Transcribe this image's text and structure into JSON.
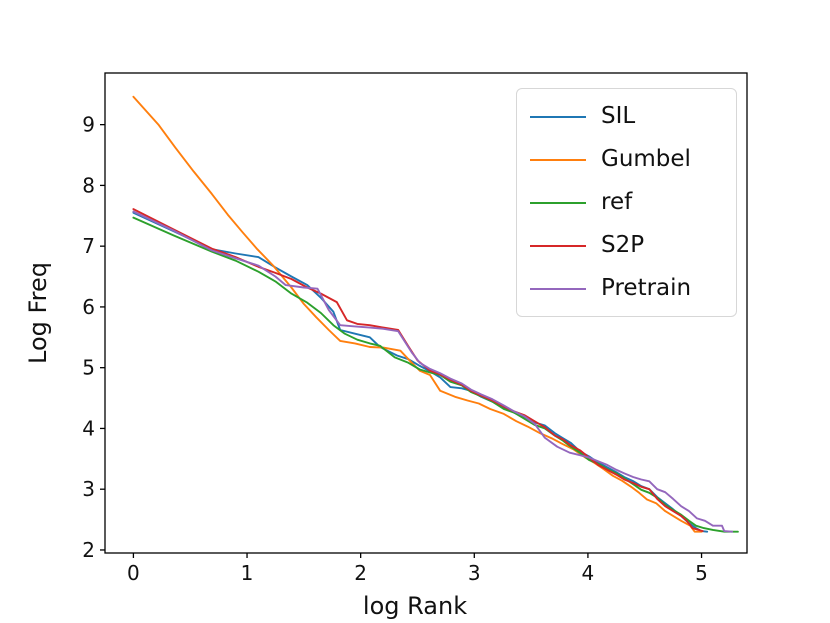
{
  "figure": {
    "background": "#ffffff"
  },
  "chart_data": {
    "type": "line",
    "title": "",
    "xlabel": "log Rank",
    "ylabel": "Log Freq",
    "xlim": [
      -0.25,
      5.4
    ],
    "ylim": [
      1.95,
      9.85
    ],
    "xticks": [
      0,
      1,
      2,
      3,
      4,
      5
    ],
    "yticks": [
      2,
      3,
      4,
      5,
      6,
      7,
      8,
      9
    ],
    "grid": false,
    "axis_color": "#000000",
    "legend": {
      "position": "upper right",
      "border_color": "#d7d7d7"
    },
    "series": [
      {
        "name": "SIL",
        "color": "#1f77b4",
        "points": [
          [
            0,
            7.55
          ],
          [
            0.35,
            7.25
          ],
          [
            0.69,
            6.95
          ],
          [
            0.9,
            6.88
          ],
          [
            1.1,
            6.82
          ],
          [
            1.25,
            6.65
          ],
          [
            1.39,
            6.5
          ],
          [
            1.53,
            6.36
          ],
          [
            1.65,
            6.15
          ],
          [
            1.76,
            5.92
          ],
          [
            1.82,
            5.62
          ],
          [
            1.95,
            5.56
          ],
          [
            2.08,
            5.5
          ],
          [
            2.17,
            5.34
          ],
          [
            2.32,
            5.2
          ],
          [
            2.42,
            5.14
          ],
          [
            2.52,
            5.03
          ],
          [
            2.61,
            4.94
          ],
          [
            2.7,
            4.84
          ],
          [
            2.79,
            4.68
          ],
          [
            2.89,
            4.66
          ],
          [
            2.97,
            4.62
          ],
          [
            3.06,
            4.52
          ],
          [
            3.16,
            4.44
          ],
          [
            3.26,
            4.34
          ],
          [
            3.35,
            4.26
          ],
          [
            3.44,
            4.18
          ],
          [
            3.53,
            4.1
          ],
          [
            3.62,
            4.05
          ],
          [
            3.71,
            3.92
          ],
          [
            3.78,
            3.84
          ],
          [
            3.85,
            3.76
          ],
          [
            3.93,
            3.62
          ],
          [
            4.01,
            3.54
          ],
          [
            4.09,
            3.44
          ],
          [
            4.17,
            3.36
          ],
          [
            4.25,
            3.28
          ],
          [
            4.32,
            3.2
          ],
          [
            4.4,
            3.13
          ],
          [
            4.47,
            3.05
          ],
          [
            4.54,
            3.0
          ],
          [
            4.61,
            2.87
          ],
          [
            4.68,
            2.77
          ],
          [
            4.75,
            2.67
          ],
          [
            4.82,
            2.56
          ],
          [
            4.89,
            2.44
          ],
          [
            4.95,
            2.36
          ],
          [
            5.0,
            2.31
          ],
          [
            5.05,
            2.3
          ]
        ]
      },
      {
        "name": "Gumbel",
        "color": "#ff7f0e",
        "points": [
          [
            0,
            9.46
          ],
          [
            0.22,
            9.0
          ],
          [
            0.37,
            8.62
          ],
          [
            0.53,
            8.23
          ],
          [
            0.69,
            7.86
          ],
          [
            0.83,
            7.52
          ],
          [
            0.96,
            7.23
          ],
          [
            1.09,
            6.95
          ],
          [
            1.23,
            6.68
          ],
          [
            1.39,
            6.32
          ],
          [
            1.5,
            6.05
          ],
          [
            1.61,
            5.83
          ],
          [
            1.72,
            5.62
          ],
          [
            1.82,
            5.44
          ],
          [
            1.95,
            5.4
          ],
          [
            2.08,
            5.34
          ],
          [
            2.2,
            5.33
          ],
          [
            2.35,
            5.28
          ],
          [
            2.45,
            5.08
          ],
          [
            2.52,
            4.95
          ],
          [
            2.61,
            4.88
          ],
          [
            2.7,
            4.62
          ],
          [
            2.83,
            4.52
          ],
          [
            2.94,
            4.46
          ],
          [
            3.04,
            4.41
          ],
          [
            3.14,
            4.32
          ],
          [
            3.26,
            4.24
          ],
          [
            3.37,
            4.12
          ],
          [
            3.47,
            4.03
          ],
          [
            3.58,
            3.92
          ],
          [
            3.69,
            3.83
          ],
          [
            3.78,
            3.74
          ],
          [
            3.87,
            3.66
          ],
          [
            3.97,
            3.53
          ],
          [
            4.06,
            3.43
          ],
          [
            4.14,
            3.33
          ],
          [
            4.22,
            3.22
          ],
          [
            4.3,
            3.14
          ],
          [
            4.38,
            3.04
          ],
          [
            4.45,
            2.94
          ],
          [
            4.52,
            2.83
          ],
          [
            4.6,
            2.77
          ],
          [
            4.68,
            2.64
          ],
          [
            4.75,
            2.56
          ],
          [
            4.82,
            2.48
          ],
          [
            4.9,
            2.4
          ],
          [
            4.94,
            2.3
          ],
          [
            5.0,
            2.3
          ]
        ]
      },
      {
        "name": "ref",
        "color": "#2ca02c",
        "points": [
          [
            0,
            7.47
          ],
          [
            0.35,
            7.18
          ],
          [
            0.69,
            6.91
          ],
          [
            0.9,
            6.76
          ],
          [
            1.1,
            6.58
          ],
          [
            1.25,
            6.42
          ],
          [
            1.39,
            6.22
          ],
          [
            1.53,
            6.07
          ],
          [
            1.65,
            5.9
          ],
          [
            1.76,
            5.7
          ],
          [
            1.86,
            5.56
          ],
          [
            1.97,
            5.46
          ],
          [
            2.08,
            5.4
          ],
          [
            2.17,
            5.36
          ],
          [
            2.3,
            5.17
          ],
          [
            2.42,
            5.08
          ],
          [
            2.52,
            4.97
          ],
          [
            2.61,
            4.92
          ],
          [
            2.7,
            4.88
          ],
          [
            2.79,
            4.77
          ],
          [
            2.89,
            4.71
          ],
          [
            2.97,
            4.6
          ],
          [
            3.06,
            4.53
          ],
          [
            3.16,
            4.44
          ],
          [
            3.26,
            4.32
          ],
          [
            3.35,
            4.26
          ],
          [
            3.44,
            4.16
          ],
          [
            3.53,
            4.06
          ],
          [
            3.62,
            4.0
          ],
          [
            3.71,
            3.88
          ],
          [
            3.78,
            3.8
          ],
          [
            3.85,
            3.7
          ],
          [
            3.93,
            3.6
          ],
          [
            4.01,
            3.48
          ],
          [
            4.09,
            3.42
          ],
          [
            4.17,
            3.33
          ],
          [
            4.25,
            3.26
          ],
          [
            4.32,
            3.18
          ],
          [
            4.4,
            3.08
          ],
          [
            4.47,
            2.99
          ],
          [
            4.54,
            2.94
          ],
          [
            4.61,
            2.86
          ],
          [
            4.68,
            2.74
          ],
          [
            4.75,
            2.66
          ],
          [
            4.82,
            2.58
          ],
          [
            4.89,
            2.48
          ],
          [
            4.95,
            2.4
          ],
          [
            5.02,
            2.36
          ],
          [
            5.1,
            2.33
          ],
          [
            5.2,
            2.3
          ],
          [
            5.32,
            2.3
          ]
        ]
      },
      {
        "name": "S2P",
        "color": "#d62728",
        "points": [
          [
            0,
            7.61
          ],
          [
            0.35,
            7.28
          ],
          [
            0.69,
            6.96
          ],
          [
            0.9,
            6.82
          ],
          [
            1.1,
            6.66
          ],
          [
            1.25,
            6.56
          ],
          [
            1.39,
            6.46
          ],
          [
            1.53,
            6.32
          ],
          [
            1.65,
            6.22
          ],
          [
            1.79,
            6.08
          ],
          [
            1.88,
            5.78
          ],
          [
            1.97,
            5.72
          ],
          [
            2.08,
            5.7
          ],
          [
            2.2,
            5.66
          ],
          [
            2.33,
            5.62
          ],
          [
            2.42,
            5.35
          ],
          [
            2.5,
            5.12
          ],
          [
            2.61,
            4.95
          ],
          [
            2.7,
            4.89
          ],
          [
            2.79,
            4.8
          ],
          [
            2.89,
            4.72
          ],
          [
            2.97,
            4.62
          ],
          [
            3.06,
            4.54
          ],
          [
            3.16,
            4.46
          ],
          [
            3.26,
            4.36
          ],
          [
            3.35,
            4.28
          ],
          [
            3.44,
            4.22
          ],
          [
            3.53,
            4.12
          ],
          [
            3.62,
            4.02
          ],
          [
            3.71,
            3.88
          ],
          [
            3.78,
            3.82
          ],
          [
            3.85,
            3.72
          ],
          [
            3.93,
            3.64
          ],
          [
            4.01,
            3.52
          ],
          [
            4.09,
            3.4
          ],
          [
            4.17,
            3.32
          ],
          [
            4.25,
            3.24
          ],
          [
            4.32,
            3.16
          ],
          [
            4.4,
            3.1
          ],
          [
            4.47,
            3.04
          ],
          [
            4.54,
            3.0
          ],
          [
            4.61,
            2.84
          ],
          [
            4.68,
            2.72
          ],
          [
            4.75,
            2.64
          ],
          [
            4.82,
            2.56
          ],
          [
            4.87,
            2.48
          ],
          [
            4.92,
            2.36
          ],
          [
            5.01,
            2.31
          ]
        ]
      },
      {
        "name": "Pretrain",
        "color": "#9467bd",
        "points": [
          [
            0,
            7.57
          ],
          [
            0.35,
            7.26
          ],
          [
            0.69,
            6.93
          ],
          [
            0.9,
            6.8
          ],
          [
            1.1,
            6.68
          ],
          [
            1.25,
            6.5
          ],
          [
            1.34,
            6.36
          ],
          [
            1.5,
            6.32
          ],
          [
            1.62,
            6.3
          ],
          [
            1.72,
            5.95
          ],
          [
            1.82,
            5.7
          ],
          [
            1.95,
            5.68
          ],
          [
            2.08,
            5.66
          ],
          [
            2.2,
            5.64
          ],
          [
            2.33,
            5.6
          ],
          [
            2.45,
            5.25
          ],
          [
            2.52,
            5.08
          ],
          [
            2.61,
            4.98
          ],
          [
            2.7,
            4.91
          ],
          [
            2.79,
            4.82
          ],
          [
            2.89,
            4.74
          ],
          [
            2.97,
            4.64
          ],
          [
            3.06,
            4.56
          ],
          [
            3.16,
            4.48
          ],
          [
            3.26,
            4.38
          ],
          [
            3.35,
            4.28
          ],
          [
            3.44,
            4.2
          ],
          [
            3.53,
            4.08
          ],
          [
            3.62,
            3.85
          ],
          [
            3.73,
            3.7
          ],
          [
            3.84,
            3.6
          ],
          [
            3.93,
            3.56
          ],
          [
            4.01,
            3.52
          ],
          [
            4.09,
            3.46
          ],
          [
            4.17,
            3.4
          ],
          [
            4.25,
            3.32
          ],
          [
            4.32,
            3.26
          ],
          [
            4.4,
            3.2
          ],
          [
            4.47,
            3.16
          ],
          [
            4.54,
            3.13
          ],
          [
            4.61,
            3.0
          ],
          [
            4.68,
            2.95
          ],
          [
            4.75,
            2.84
          ],
          [
            4.82,
            2.72
          ],
          [
            4.89,
            2.64
          ],
          [
            4.96,
            2.52
          ],
          [
            5.03,
            2.48
          ],
          [
            5.1,
            2.4
          ],
          [
            5.18,
            2.4
          ],
          [
            5.2,
            2.31
          ],
          [
            5.27,
            2.3
          ]
        ]
      }
    ]
  }
}
